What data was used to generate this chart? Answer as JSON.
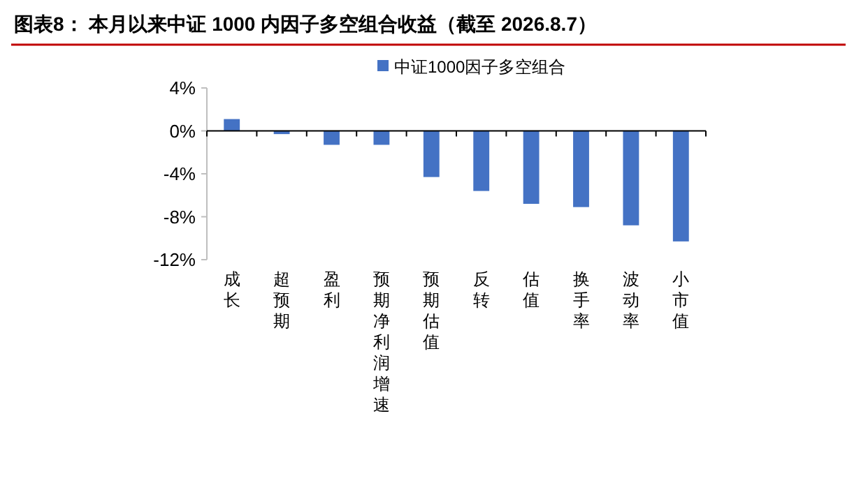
{
  "chart_data": {
    "type": "bar",
    "title": "图表8：  本月以来中证 1000 内因子多空组合收益（截至 2026.8.7）",
    "categories": [
      "成长",
      "超预期",
      "盈利",
      "预期净利润增速",
      "预期估值",
      "反转",
      "估值",
      "换手率",
      "波动率",
      "小市值"
    ],
    "series": [
      {
        "name": "中证1000因子多空组合",
        "color": "#4472c4",
        "values": [
          1.1,
          -0.3,
          -1.3,
          -1.3,
          -4.3,
          -5.6,
          -6.8,
          -7.1,
          -8.8,
          -10.3
        ]
      }
    ],
    "ylim": [
      -12,
      4
    ],
    "yticks": [
      {
        "value": -12,
        "label": "-12%"
      },
      {
        "value": -8,
        "label": "-8%"
      },
      {
        "value": -4,
        "label": "-4%"
      },
      {
        "value": 0,
        "label": "0%"
      },
      {
        "value": 4,
        "label": "4%"
      }
    ],
    "legend": "top"
  }
}
